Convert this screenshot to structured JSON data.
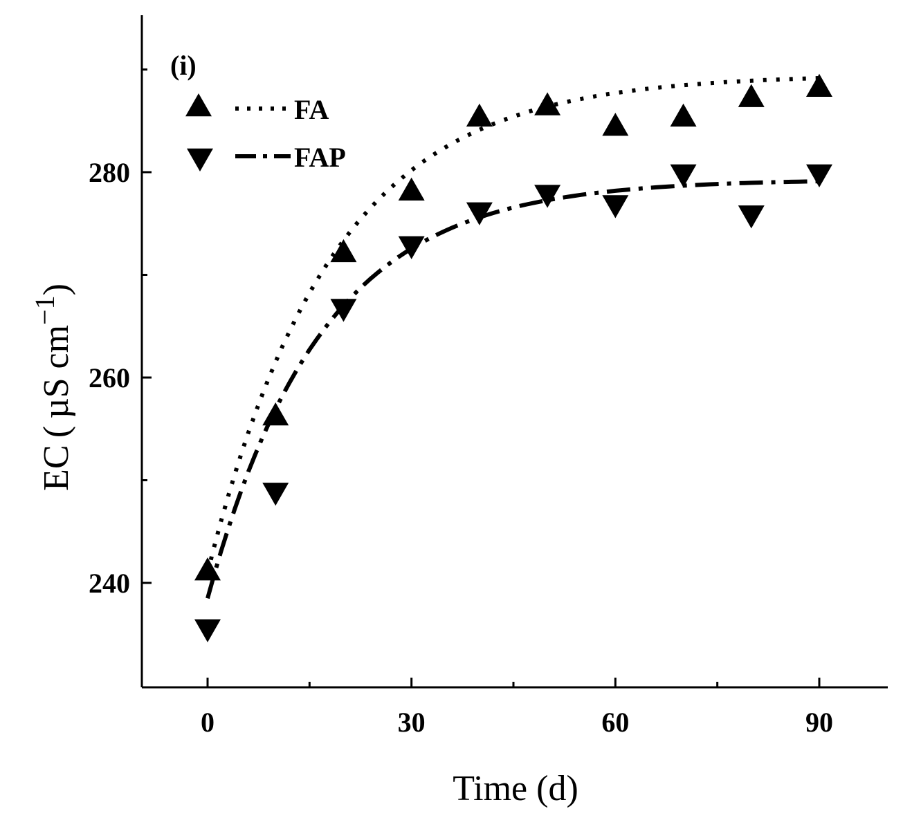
{
  "chart_data": {
    "type": "scatter",
    "panel_label": "(i)",
    "xlabel": "Time (d)",
    "ylabel": "EC ( µS cm",
    "ylabel_sup": "−1",
    "ylabel_close": ")",
    "xlim": [
      -10,
      100
    ],
    "ylim": [
      230,
      294
    ],
    "xticks": [
      0,
      30,
      60,
      90
    ],
    "xminor": [
      15,
      45,
      75
    ],
    "yticks": [
      240,
      260,
      280
    ],
    "yminor": [
      250,
      270,
      290
    ],
    "series": [
      {
        "name": "FA",
        "marker": "triangle-up",
        "line_style": "dotted",
        "color": "#000000",
        "x": [
          0,
          10,
          20,
          30,
          40,
          50,
          60,
          70,
          80,
          90
        ],
        "y": [
          241.2,
          256.3,
          272.2,
          278.2,
          285.4,
          286.5,
          284.5,
          285.4,
          287.3,
          288.3
        ],
        "fit": {
          "a": 289.5,
          "b": 48.5,
          "k": 0.055
        }
      },
      {
        "name": "FAP",
        "marker": "triangle-down",
        "line_style": "dash-dot",
        "color": "#000000",
        "x": [
          0,
          10,
          20,
          30,
          40,
          50,
          60,
          70,
          80,
          90
        ],
        "y": [
          235.5,
          248.8,
          266.7,
          272.8,
          276.1,
          277.8,
          276.8,
          279.8,
          275.8,
          279.8
        ],
        "fit": {
          "a": 279.3,
          "b": 40.8,
          "k": 0.06
        }
      }
    ]
  }
}
